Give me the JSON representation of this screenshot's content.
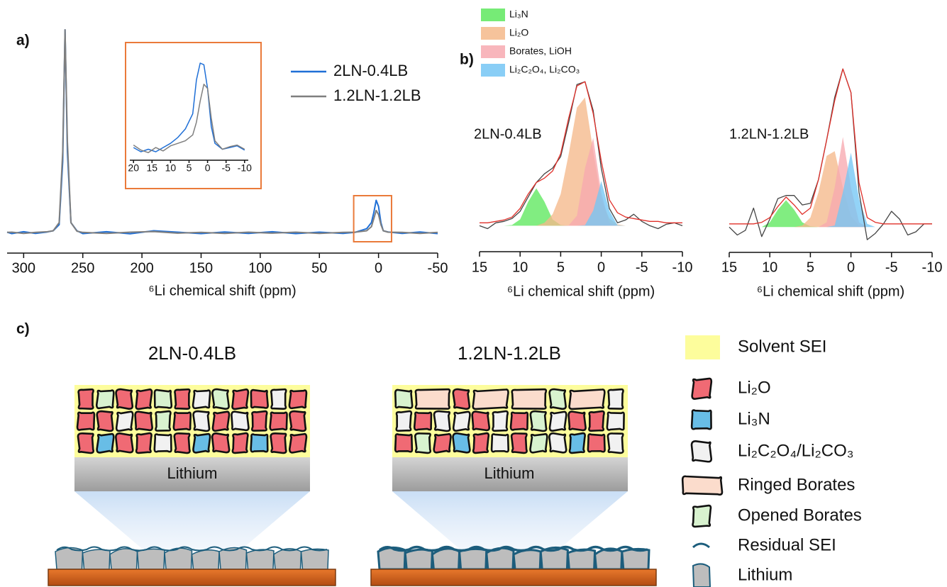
{
  "chart_data": [
    {
      "type": "line",
      "panel_label": "a)",
      "xlabel": "⁶Li chemical shift (ppm)",
      "x": [
        314,
        310,
        300,
        290,
        280,
        275,
        270,
        267,
        265,
        263,
        260,
        255,
        250,
        230,
        210,
        190,
        170,
        150,
        130,
        110,
        90,
        70,
        50,
        30,
        20,
        10,
        6,
        4,
        2,
        0,
        -2,
        -4,
        -8,
        -20,
        -35,
        -50
      ],
      "xlim": [
        314,
        -50
      ],
      "xticks": [
        300,
        250,
        200,
        150,
        100,
        50,
        0,
        -50
      ],
      "ylim": [
        -0.1,
        1.0
      ],
      "series": [
        {
          "name": "2LN-0.4LB",
          "color": "#1f6fd6",
          "values": [
            0.003,
            -0.004,
            0.005,
            -0.003,
            0.004,
            0.01,
            0.04,
            0.35,
            1.0,
            0.4,
            0.05,
            0.01,
            -0.004,
            0.005,
            -0.005,
            0.01,
            0.003,
            -0.004,
            0.004,
            -0.003,
            0.005,
            -0.004,
            0.003,
            -0.003,
            0.002,
            0.02,
            0.05,
            0.1,
            0.16,
            0.13,
            0.05,
            0.01,
            0.004,
            -0.003,
            0.004,
            -0.004
          ]
        },
        {
          "name": "1.2LN-1.2LB",
          "color": "#7f7f7f",
          "values": [
            0.002,
            0.003,
            -0.003,
            0.002,
            0.005,
            0.01,
            0.05,
            0.4,
            1.0,
            0.45,
            0.05,
            0.008,
            0.002,
            -0.003,
            0.003,
            0.006,
            -0.002,
            0.002,
            -0.003,
            0.003,
            -0.002,
            0.003,
            -0.003,
            0.002,
            0.003,
            0.01,
            0.03,
            0.07,
            0.11,
            0.09,
            0.04,
            0.01,
            0.003,
            0.002,
            -0.003,
            0.002
          ]
        }
      ]
    },
    {
      "type": "line",
      "x": [
        20,
        18,
        16,
        14,
        12,
        10,
        8,
        6,
        4,
        3,
        2,
        1,
        0,
        -1,
        -2,
        -4,
        -6,
        -8,
        -10
      ],
      "xlim": [
        21,
        -11
      ],
      "xticks": [
        20,
        15,
        10,
        5,
        0,
        -5,
        -10
      ],
      "ylim": [
        -0.15,
        1.05
      ],
      "series": [
        {
          "color": "#1f6fd6",
          "values": [
            0.0,
            -0.05,
            -0.02,
            -0.05,
            0.0,
            0.05,
            0.12,
            0.22,
            0.4,
            0.8,
            1.0,
            0.98,
            0.7,
            0.25,
            0.05,
            -0.02,
            0.0,
            0.02,
            -0.03
          ]
        },
        {
          "color": "#7f7f7f",
          "values": [
            0.03,
            -0.03,
            -0.06,
            0.0,
            -0.04,
            0.02,
            0.05,
            0.08,
            0.15,
            0.3,
            0.55,
            0.75,
            0.7,
            0.35,
            0.08,
            -0.02,
            0.01,
            0.03,
            -0.02
          ]
        }
      ]
    },
    {
      "type": "line",
      "panel_label": "b)",
      "annotation": "2LN-0.4LB",
      "xlabel": "⁶Li chemical shift (ppm)",
      "x": [
        15,
        14,
        13,
        12,
        11,
        10,
        9,
        8,
        7,
        6,
        5,
        4,
        3,
        2,
        1,
        0,
        -1,
        -2,
        -3,
        -4,
        -5,
        -6,
        -7,
        -8,
        -9,
        -10
      ],
      "xlim": [
        15,
        -10
      ],
      "xticks": [
        15,
        10,
        5,
        0,
        -5,
        -10
      ],
      "ylim": [
        -0.18,
        1.05
      ],
      "series": [
        {
          "name": "Li₃N",
          "color": "#5ee85e",
          "fill": true,
          "values": [
            0,
            0,
            0,
            0,
            0.005,
            0.044,
            0.167,
            0.26,
            0.167,
            0.044,
            0.005,
            0,
            0,
            0,
            0,
            0,
            0,
            0,
            0,
            0,
            0,
            0,
            0,
            0,
            0,
            0
          ]
        },
        {
          "name": "Li₂O",
          "color": "#f5b98a",
          "fill": true,
          "values": [
            0,
            0,
            0,
            0,
            0,
            0,
            0,
            0,
            0.02,
            0.08,
            0.22,
            0.5,
            0.82,
            0.89,
            0.52,
            0.18,
            0.05,
            0.01,
            0,
            0,
            0,
            0,
            0,
            0,
            0,
            0
          ]
        },
        {
          "name": "Borates, LiOH",
          "color": "#f7a9b0",
          "fill": true,
          "values": [
            0,
            0,
            0,
            0,
            0,
            0,
            0,
            0,
            0,
            0,
            0,
            0.003,
            0.07,
            0.4,
            0.61,
            0.23,
            0.02,
            0,
            0,
            0,
            0,
            0,
            0,
            0,
            0,
            0
          ]
        },
        {
          "name": "Li₂C₂O₄, Li₂CO₃",
          "color": "#74c6f5",
          "fill": true,
          "values": [
            0,
            0,
            0,
            0,
            0,
            0,
            0,
            0,
            0,
            0,
            0,
            0,
            0,
            0.004,
            0.105,
            0.31,
            0.105,
            0.004,
            0,
            0,
            0,
            0,
            0,
            0,
            0,
            0
          ]
        },
        {
          "color": "#444444",
          "values": [
            0,
            -0.02,
            0.02,
            0.03,
            0.05,
            0.1,
            0.2,
            0.3,
            0.36,
            0.4,
            0.48,
            0.72,
            0.98,
            1.0,
            0.8,
            0.4,
            0.12,
            0.02,
            0.04,
            0.08,
            0.03,
            0,
            -0.02,
            0.01,
            0.02,
            0
          ]
        },
        {
          "color": "#e0302a",
          "values": [
            0.02,
            0.02,
            0.03,
            0.04,
            0.06,
            0.12,
            0.22,
            0.3,
            0.33,
            0.38,
            0.5,
            0.75,
            0.97,
            1.0,
            0.78,
            0.45,
            0.18,
            0.09,
            0.06,
            0.05,
            0.04,
            0.03,
            0.03,
            0.02,
            0.02,
            0.02
          ]
        }
      ]
    },
    {
      "type": "line",
      "annotation": "1.2LN-1.2LB",
      "xlabel": "⁶Li chemical shift (ppm)",
      "x": [
        15,
        14,
        13,
        12,
        11,
        10,
        9,
        8,
        7,
        6,
        5,
        4,
        3,
        2,
        1,
        0,
        -1,
        -2,
        -3,
        -4,
        -5,
        -6,
        -7,
        -8,
        -9,
        -10
      ],
      "xlim": [
        15,
        -10
      ],
      "xticks": [
        15,
        10,
        5,
        0,
        -5,
        -10
      ],
      "ylim": [
        -0.16,
        1.05
      ],
      "series": [
        {
          "color": "#5ee85e",
          "fill": true,
          "values": [
            0,
            0,
            0,
            0,
            0,
            0.03,
            0.11,
            0.17,
            0.11,
            0.03,
            0.005,
            0,
            0,
            0,
            0,
            0,
            0,
            0,
            0,
            0,
            0,
            0,
            0,
            0,
            0,
            0
          ]
        },
        {
          "color": "#f5b98a",
          "fill": true,
          "values": [
            0,
            0,
            0,
            0,
            0,
            0,
            0,
            0,
            0,
            0.01,
            0.06,
            0.22,
            0.45,
            0.48,
            0.25,
            0.07,
            0.01,
            0,
            0,
            0,
            0,
            0,
            0,
            0,
            0,
            0
          ]
        },
        {
          "color": "#f7a9b0",
          "fill": true,
          "values": [
            0,
            0,
            0,
            0,
            0,
            0,
            0,
            0,
            0,
            0,
            0,
            0,
            0.03,
            0.25,
            0.57,
            0.25,
            0.03,
            0,
            0,
            0,
            0,
            0,
            0,
            0,
            0,
            0
          ]
        },
        {
          "color": "#74c6f5",
          "fill": true,
          "values": [
            0,
            0,
            0,
            0,
            0,
            0,
            0,
            0,
            0,
            0,
            0,
            0,
            0,
            0.01,
            0.22,
            0.47,
            0.18,
            0.02,
            0,
            0,
            0,
            0,
            0,
            0,
            0,
            0
          ]
        },
        {
          "color": "#444444",
          "values": [
            0,
            -0.05,
            -0.02,
            0.12,
            -0.06,
            0.05,
            0.18,
            0.2,
            0.2,
            0.14,
            0.15,
            0.3,
            0.55,
            0.82,
            1.0,
            0.85,
            0.22,
            -0.08,
            -0.04,
            0.02,
            0.1,
            0.05,
            -0.05,
            -0.03,
            0.02,
            0.02
          ]
        },
        {
          "color": "#e0302a",
          "values": [
            0.02,
            0.02,
            0.02,
            0.02,
            0.03,
            0.06,
            0.13,
            0.19,
            0.14,
            0.08,
            0.12,
            0.3,
            0.55,
            0.8,
            1.0,
            0.85,
            0.28,
            0.06,
            0.03,
            0.02,
            0.02,
            0.02,
            0.02,
            0.02,
            0.02,
            0.02
          ]
        }
      ]
    }
  ],
  "diagram": {
    "panel_label": "c)",
    "left": {
      "title": "2LN-0.4LB",
      "substrate": "Lithium"
    },
    "right": {
      "title": "1.2LN-1.2LB",
      "substrate": "Lithium"
    },
    "legend": [
      "Solvent SEI",
      "Li₂O",
      "Li₃N",
      "Li₂C₂O₄/Li₂CO₃",
      "Ringed Borates",
      "Opened Borates",
      "Residual SEI",
      "Lithium"
    ]
  }
}
